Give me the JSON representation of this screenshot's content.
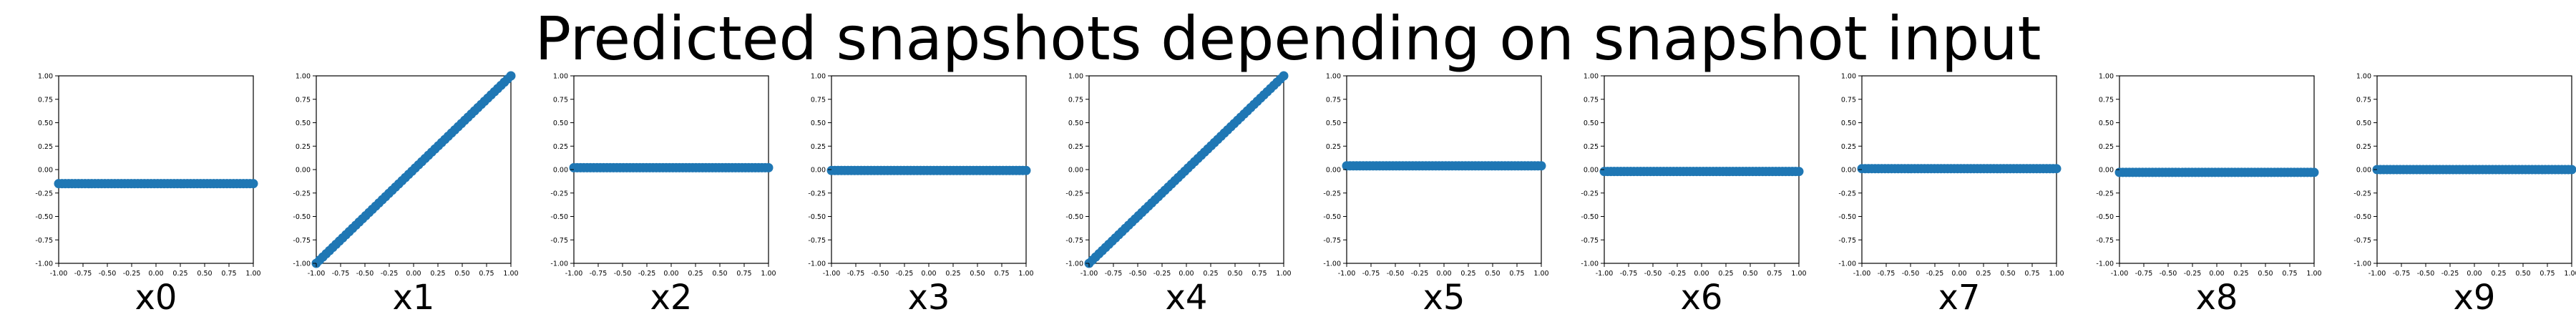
{
  "title": "Predicted snapshots depending on snapshot input",
  "style": {
    "marker_color": "#1f77b4",
    "axis_color": "#000000"
  },
  "chart_data": [
    {
      "type": "scatter",
      "xlabel": "x0",
      "xlim": [
        -1,
        1
      ],
      "ylim": [
        -1,
        1
      ],
      "xticks": [
        "-1.00",
        "-0.75",
        "-0.50",
        "-0.25",
        "0.00",
        "0.25",
        "0.50",
        "0.75",
        "1.00"
      ],
      "yticks": [
        "-1.00",
        "-0.75",
        "-0.50",
        "-0.25",
        "0.00",
        "0.25",
        "0.50",
        "0.75",
        "1.00"
      ],
      "series": [
        {
          "x": [
            -1,
            1
          ],
          "y": [
            -0.15,
            -0.15
          ]
        }
      ]
    },
    {
      "type": "scatter",
      "xlabel": "x1",
      "xlim": [
        -1,
        1
      ],
      "ylim": [
        -1,
        1
      ],
      "xticks": [
        "-1.00",
        "-0.75",
        "-0.50",
        "-0.25",
        "0.00",
        "0.25",
        "0.50",
        "0.75",
        "1.00"
      ],
      "yticks": [
        "-1.00",
        "-0.75",
        "-0.50",
        "-0.25",
        "0.00",
        "0.25",
        "0.50",
        "0.75",
        "1.00"
      ],
      "series": [
        {
          "x": [
            -1,
            1
          ],
          "y": [
            -1,
            1
          ]
        }
      ]
    },
    {
      "type": "scatter",
      "xlabel": "x2",
      "xlim": [
        -1,
        1
      ],
      "ylim": [
        -1,
        1
      ],
      "xticks": [
        "-1.00",
        "-0.75",
        "-0.50",
        "-0.25",
        "0.00",
        "0.25",
        "0.50",
        "0.75",
        "1.00"
      ],
      "yticks": [
        "-1.00",
        "-0.75",
        "-0.50",
        "-0.25",
        "0.00",
        "0.25",
        "0.50",
        "0.75",
        "1.00"
      ],
      "series": [
        {
          "x": [
            -1,
            1
          ],
          "y": [
            0.02,
            0.02
          ]
        }
      ]
    },
    {
      "type": "scatter",
      "xlabel": "x3",
      "xlim": [
        -1,
        1
      ],
      "ylim": [
        -1,
        1
      ],
      "xticks": [
        "-1.00",
        "-0.75",
        "-0.50",
        "-0.25",
        "0.00",
        "0.25",
        "0.50",
        "0.75",
        "1.00"
      ],
      "yticks": [
        "-1.00",
        "-0.75",
        "-0.50",
        "-0.25",
        "0.00",
        "0.25",
        "0.50",
        "0.75",
        "1.00"
      ],
      "series": [
        {
          "x": [
            -1,
            1
          ],
          "y": [
            -0.01,
            -0.01
          ]
        }
      ]
    },
    {
      "type": "scatter",
      "xlabel": "x4",
      "xlim": [
        -1,
        1
      ],
      "ylim": [
        -1,
        1
      ],
      "xticks": [
        "-1.00",
        "-0.75",
        "-0.50",
        "-0.25",
        "0.00",
        "0.25",
        "0.50",
        "0.75",
        "1.00"
      ],
      "yticks": [
        "-1.00",
        "-0.75",
        "-0.50",
        "-0.25",
        "0.00",
        "0.25",
        "0.50",
        "0.75",
        "1.00"
      ],
      "series": [
        {
          "x": [
            -1,
            1
          ],
          "y": [
            -1,
            1
          ]
        }
      ]
    },
    {
      "type": "scatter",
      "xlabel": "x5",
      "xlim": [
        -1,
        1
      ],
      "ylim": [
        -1,
        1
      ],
      "xticks": [
        "-1.00",
        "-0.75",
        "-0.50",
        "-0.25",
        "0.00",
        "0.25",
        "0.50",
        "0.75",
        "1.00"
      ],
      "yticks": [
        "-1.00",
        "-0.75",
        "-0.50",
        "-0.25",
        "0.00",
        "0.25",
        "0.50",
        "0.75",
        "1.00"
      ],
      "series": [
        {
          "x": [
            -1,
            1
          ],
          "y": [
            0.04,
            0.04
          ]
        }
      ]
    },
    {
      "type": "scatter",
      "xlabel": "x6",
      "xlim": [
        -1,
        1
      ],
      "ylim": [
        -1,
        1
      ],
      "xticks": [
        "-1.00",
        "-0.75",
        "-0.50",
        "-0.25",
        "0.00",
        "0.25",
        "0.50",
        "0.75",
        "1.00"
      ],
      "yticks": [
        "-1.00",
        "-0.75",
        "-0.50",
        "-0.25",
        "0.00",
        "0.25",
        "0.50",
        "0.75",
        "1.00"
      ],
      "series": [
        {
          "x": [
            -1,
            1
          ],
          "y": [
            -0.02,
            -0.02
          ]
        }
      ]
    },
    {
      "type": "scatter",
      "xlabel": "x7",
      "xlim": [
        -1,
        1
      ],
      "ylim": [
        -1,
        1
      ],
      "xticks": [
        "-1.00",
        "-0.75",
        "-0.50",
        "-0.25",
        "0.00",
        "0.25",
        "0.50",
        "0.75",
        "1.00"
      ],
      "yticks": [
        "-1.00",
        "-0.75",
        "-0.50",
        "-0.25",
        "0.00",
        "0.25",
        "0.50",
        "0.75",
        "1.00"
      ],
      "series": [
        {
          "x": [
            -1,
            1
          ],
          "y": [
            0.01,
            0.01
          ]
        }
      ]
    },
    {
      "type": "scatter",
      "xlabel": "x8",
      "xlim": [
        -1,
        1
      ],
      "ylim": [
        -1,
        1
      ],
      "xticks": [
        "-1.00",
        "-0.75",
        "-0.50",
        "-0.25",
        "0.00",
        "0.25",
        "0.50",
        "0.75",
        "1.00"
      ],
      "yticks": [
        "-1.00",
        "-0.75",
        "-0.50",
        "-0.25",
        "0.00",
        "0.25",
        "0.50",
        "0.75",
        "1.00"
      ],
      "series": [
        {
          "x": [
            -1,
            1
          ],
          "y": [
            -0.03,
            -0.03
          ]
        }
      ]
    },
    {
      "type": "scatter",
      "xlabel": "x9",
      "xlim": [
        -1,
        1
      ],
      "ylim": [
        -1,
        1
      ],
      "xticks": [
        "-1.00",
        "-0.75",
        "-0.50",
        "-0.25",
        "0.00",
        "0.25",
        "0.50",
        "0.75",
        "1.00"
      ],
      "yticks": [
        "-1.00",
        "-0.75",
        "-0.50",
        "-0.25",
        "0.00",
        "0.25",
        "0.50",
        "0.75",
        "1.00"
      ],
      "series": [
        {
          "x": [
            -1,
            1
          ],
          "y": [
            0.0,
            0.0
          ]
        }
      ]
    }
  ]
}
